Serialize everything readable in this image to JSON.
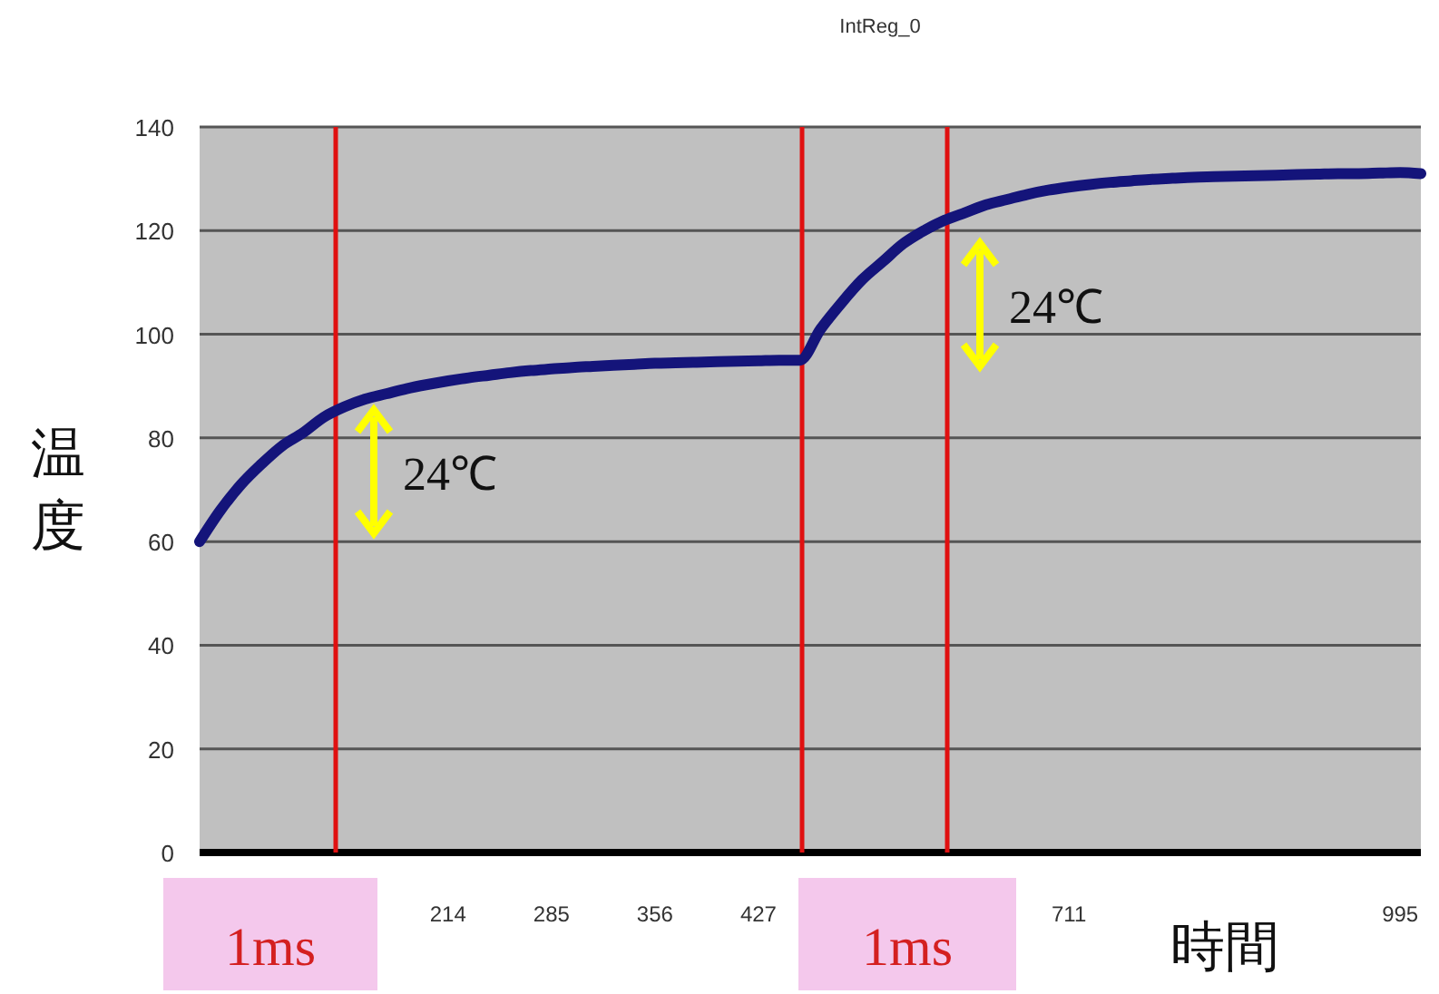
{
  "chart_data": {
    "type": "line",
    "title": "IntReg_0",
    "xlabel": "時間",
    "ylabel": "温度",
    "categories": [
      null,
      null,
      null,
      null,
      null,
      null,
      null,
      null,
      null,
      null,
      null,
      null,
      "214",
      null,
      null,
      null,
      null,
      "285",
      null,
      null,
      null,
      null,
      "356",
      null,
      null,
      null,
      null,
      "427",
      null,
      null,
      null,
      null,
      null,
      null,
      null,
      null,
      null,
      null,
      null,
      null,
      null,
      null,
      "711",
      null,
      null,
      null,
      null,
      null,
      null,
      null,
      null,
      null,
      null,
      null,
      null,
      null,
      null,
      null,
      "995",
      null
    ],
    "series": [
      {
        "color": "#14147a",
        "values": [
          60,
          66,
          71,
          75,
          78.5,
          81,
          84,
          86,
          87.5,
          88.5,
          89.5,
          90.3,
          91,
          91.6,
          92.1,
          92.6,
          93,
          93.3,
          93.6,
          93.8,
          94,
          94.2,
          94.4,
          94.5,
          94.6,
          94.7,
          94.8,
          94.9,
          95,
          95,
          101,
          106,
          110.5,
          114,
          117.5,
          120,
          122,
          123.5,
          125,
          126,
          127,
          127.8,
          128.4,
          128.9,
          129.3,
          129.6,
          129.9,
          130.1,
          130.3,
          130.4,
          130.5,
          130.6,
          130.7,
          130.8,
          130.9,
          131,
          131,
          131.1,
          131.2,
          131
        ]
      }
    ],
    "ylim": [
      0,
      140
    ],
    "yticks": [
      0,
      20,
      40,
      60,
      80,
      100,
      120,
      140
    ],
    "grid": "y",
    "marker": "none",
    "line_style": "solid",
    "annotations": [
      "24℃",
      "24℃",
      "1ms",
      "1ms"
    ]
  }
}
